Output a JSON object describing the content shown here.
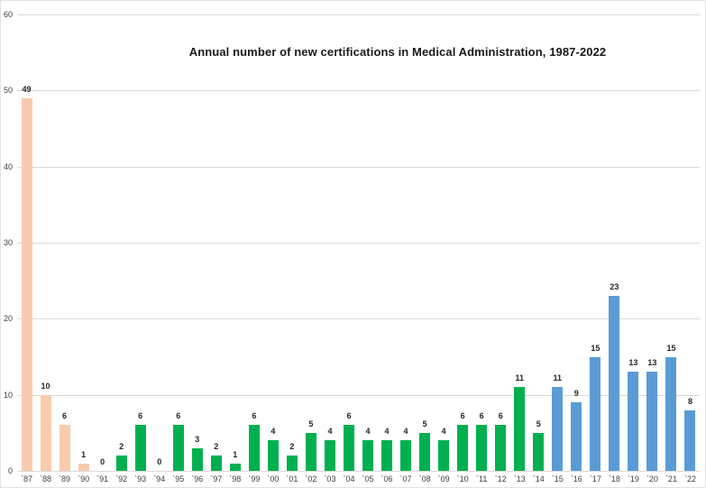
{
  "title": "Annual number of new certifications in Medical Administration, 1987-2022",
  "colors": {
    "era_1987_1990": "#F8CBAD",
    "era_1992_2014": "#00B050",
    "era_2015_2022": "#5B9BD5",
    "gridline": "#D9D9D9",
    "text": "#262626"
  },
  "chart_data": {
    "type": "bar",
    "title": "Annual number of new certifications in Medical Administration, 1987-2022",
    "xlabel": "",
    "ylabel": "",
    "categories": [
      "`87",
      "`88",
      "`89",
      "`90",
      "`91",
      "`92",
      "`93",
      "`94",
      "`95",
      "`96",
      "`97",
      "`98",
      "`99",
      "`00",
      "`01",
      "`02",
      "`03",
      "`04",
      "`05",
      "`06",
      "`07",
      "`08",
      "`09",
      "`10",
      "`11",
      "`12",
      "`13",
      "`14",
      "`15",
      "`16",
      "`17",
      "`18",
      "`19",
      "`20",
      "`21",
      "`22"
    ],
    "values": [
      49,
      10,
      6,
      1,
      0,
      2,
      6,
      0,
      6,
      3,
      2,
      1,
      6,
      4,
      2,
      5,
      4,
      6,
      4,
      4,
      4,
      5,
      4,
      6,
      6,
      6,
      11,
      5,
      11,
      9,
      15,
      23,
      13,
      13,
      15,
      8
    ],
    "color_groups": [
      {
        "count": 4,
        "color": "#F8CBAD"
      },
      {
        "count": 24,
        "color": "#00B050"
      },
      {
        "count": 8,
        "color": "#5B9BD5"
      }
    ],
    "yticks": [
      0,
      10,
      20,
      30,
      40,
      50,
      60
    ],
    "ylim": [
      0,
      60
    ],
    "grid": true,
    "legend": "none",
    "value_labels": "above bars"
  }
}
